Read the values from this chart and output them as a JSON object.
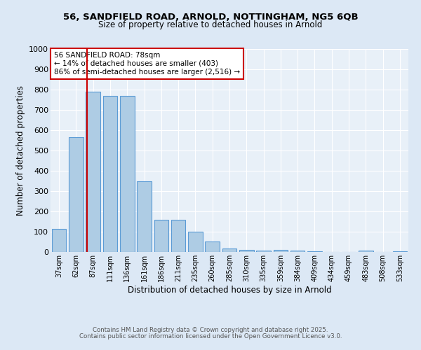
{
  "title1": "56, SANDFIELD ROAD, ARNOLD, NOTTINGHAM, NG5 6QB",
  "title2": "Size of property relative to detached houses in Arnold",
  "xlabel": "Distribution of detached houses by size in Arnold",
  "ylabel": "Number of detached properties",
  "categories": [
    "37sqm",
    "62sqm",
    "87sqm",
    "111sqm",
    "136sqm",
    "161sqm",
    "186sqm",
    "211sqm",
    "235sqm",
    "260sqm",
    "285sqm",
    "310sqm",
    "335sqm",
    "359sqm",
    "384sqm",
    "409sqm",
    "434sqm",
    "459sqm",
    "483sqm",
    "508sqm",
    "533sqm"
  ],
  "values": [
    115,
    565,
    790,
    770,
    770,
    350,
    160,
    160,
    100,
    52,
    18,
    12,
    8,
    12,
    8,
    4,
    0,
    0,
    8,
    0,
    4
  ],
  "bar_color": "#aecce4",
  "bar_edge_color": "#5b9bd5",
  "annotation_text": "56 SANDFIELD ROAD: 78sqm\n← 14% of detached houses are smaller (403)\n86% of semi-detached houses are larger (2,516) →",
  "footer1": "Contains HM Land Registry data © Crown copyright and database right 2025.",
  "footer2": "Contains public sector information licensed under the Open Government Licence v3.0.",
  "bg_color": "#dce8f5",
  "plot_bg_color": "#e8f0f8",
  "grid_color": "#ffffff",
  "ylim": [
    0,
    1000
  ],
  "yticks": [
    0,
    100,
    200,
    300,
    400,
    500,
    600,
    700,
    800,
    900,
    1000
  ],
  "title1_fontsize": 9.5,
  "title2_fontsize": 8.5
}
